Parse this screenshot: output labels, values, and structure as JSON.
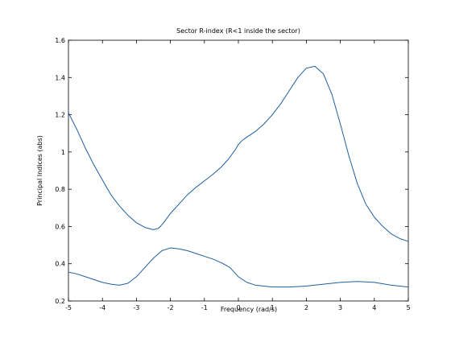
{
  "chart_data": {
    "type": "line",
    "title": "Sector R-index (R<1 inside the sector)",
    "xlabel": "Frequency (rad/s)",
    "ylabel": "Principal Indices (abs)",
    "xlim": [
      -5,
      5
    ],
    "ylim": [
      0.2,
      1.6
    ],
    "xticks": [
      -5,
      -4,
      -3,
      -2,
      -1,
      0,
      1,
      2,
      3,
      4,
      5
    ],
    "yticks": [
      0.2,
      0.4,
      0.6,
      0.8,
      1,
      1.2,
      1.4,
      1.6
    ],
    "grid": false,
    "line_color": "#1f5fa0",
    "series": [
      {
        "x": [
          -5,
          -4.75,
          -4.5,
          -4.25,
          -4,
          -3.75,
          -3.5,
          -3.25,
          -3,
          -2.75,
          -2.5,
          -2.35,
          -2.2,
          -2,
          -1.75,
          -1.5,
          -1.25,
          -1,
          -0.75,
          -0.5,
          -0.3,
          -0.1,
          0,
          0.1,
          0.25,
          0.5,
          0.75,
          1,
          1.25,
          1.5,
          1.75,
          2,
          2.25,
          2.5,
          2.75,
          3,
          3.25,
          3.5,
          3.75,
          4,
          4.25,
          4.5,
          4.75,
          5
        ],
        "y": [
          1.21,
          1.12,
          1.02,
          0.93,
          0.85,
          0.77,
          0.71,
          0.66,
          0.62,
          0.595,
          0.583,
          0.59,
          0.62,
          0.67,
          0.72,
          0.77,
          0.81,
          0.845,
          0.88,
          0.92,
          0.96,
          1.01,
          1.04,
          1.06,
          1.08,
          1.11,
          1.15,
          1.2,
          1.26,
          1.33,
          1.4,
          1.45,
          1.46,
          1.42,
          1.31,
          1.15,
          0.98,
          0.83,
          0.72,
          0.65,
          0.6,
          0.56,
          0.535,
          0.52
        ]
      },
      {
        "x": [
          -5,
          -4.75,
          -4.5,
          -4.25,
          -4,
          -3.75,
          -3.5,
          -3.25,
          -3,
          -2.75,
          -2.5,
          -2.25,
          -2,
          -1.75,
          -1.5,
          -1.25,
          -1,
          -0.75,
          -0.5,
          -0.25,
          0,
          0.25,
          0.5,
          0.75,
          1,
          1.5,
          2,
          2.5,
          3,
          3.5,
          4,
          4.5,
          5
        ],
        "y": [
          0.355,
          0.345,
          0.33,
          0.315,
          0.3,
          0.29,
          0.285,
          0.295,
          0.33,
          0.38,
          0.43,
          0.47,
          0.485,
          0.48,
          0.47,
          0.455,
          0.44,
          0.425,
          0.405,
          0.38,
          0.33,
          0.3,
          0.285,
          0.28,
          0.275,
          0.275,
          0.28,
          0.29,
          0.3,
          0.305,
          0.3,
          0.285,
          0.275
        ]
      }
    ]
  }
}
